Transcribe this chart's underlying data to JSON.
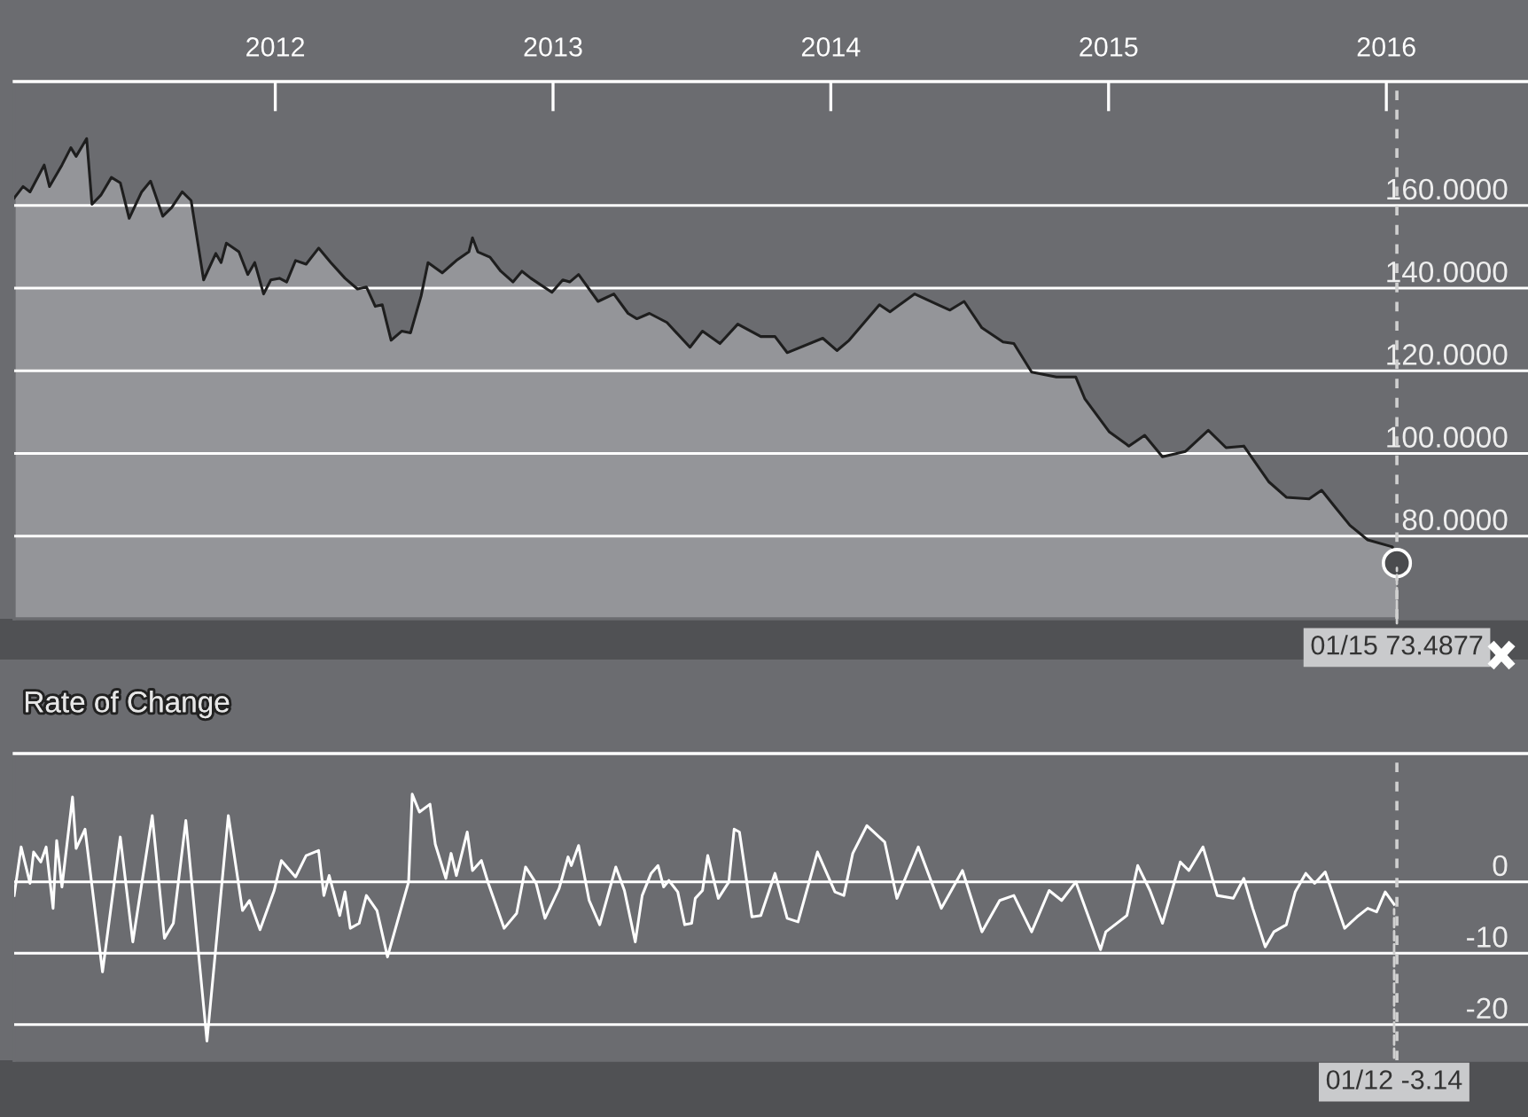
{
  "chart_data": [
    {
      "type": "area",
      "xlim": [
        2011.06,
        2016.51
      ],
      "xticks": [
        2012,
        2013,
        2014,
        2015,
        2016
      ],
      "ylim": [
        60,
        190
      ],
      "yticks": [
        {
          "value": 80,
          "label": "80.0000"
        },
        {
          "value": 100,
          "label": "100.0000"
        },
        {
          "value": 120,
          "label": "120.0000"
        },
        {
          "value": 140,
          "label": "140.0000"
        },
        {
          "value": 160,
          "label": "160.0000"
        }
      ],
      "grid": "y",
      "legend": false,
      "series": [
        {
          "color": "#949599",
          "x": [
            2011.06,
            2011.092,
            2011.117,
            2011.168,
            2011.187,
            2011.232,
            2011.264,
            2011.283,
            2011.321,
            2011.34,
            2011.372,
            2011.41,
            2011.442,
            2011.474,
            2011.519,
            2011.551,
            2011.595,
            2011.627,
            2011.665,
            2011.697,
            2011.742,
            2011.786,
            2011.805,
            2011.824,
            2011.869,
            2011.901,
            2011.926,
            2011.958,
            2011.984,
            2012.015,
            2012.041,
            2012.073,
            2012.111,
            2012.156,
            2012.2,
            2012.251,
            2012.296,
            2012.328,
            2012.36,
            2012.385,
            2012.417,
            2012.455,
            2012.487,
            2012.525,
            2012.55,
            2012.601,
            2012.652,
            2012.697,
            2012.71,
            2012.729,
            2012.773,
            2012.812,
            2012.856,
            2012.888,
            2012.92,
            2012.996,
            2013.035,
            2013.06,
            2013.092,
            2013.162,
            2013.219,
            2013.27,
            2013.302,
            2013.347,
            2013.41,
            2013.493,
            2013.538,
            2013.601,
            2013.665,
            2013.748,
            2013.799,
            2013.843,
            2013.971,
            2014.022,
            2014.066,
            2014.175,
            2014.213,
            2014.302,
            2014.385,
            2014.429,
            2014.48,
            2014.544,
            2014.62,
            2014.659,
            2014.723,
            2014.812,
            2014.882,
            2014.914,
            2015.003,
            2015.073,
            2015.13,
            2015.194,
            2015.277,
            2015.359,
            2015.423,
            2015.487,
            2015.576,
            2015.64,
            2015.722,
            2015.767,
            2015.818,
            2015.869,
            2015.933,
            2016.022,
            2016.038
          ],
          "values": [
            161.8,
            164.6,
            163.3,
            169.8,
            164.6,
            169.8,
            174.0,
            171.9,
            176.2,
            160.3,
            162.5,
            166.8,
            165.5,
            156.9,
            163.3,
            165.9,
            157.4,
            159.5,
            163.3,
            161.2,
            142.0,
            148.4,
            146.2,
            150.9,
            148.8,
            143.3,
            146.2,
            138.6,
            142.0,
            142.4,
            141.5,
            146.7,
            145.8,
            149.7,
            146.2,
            142.4,
            139.8,
            140.3,
            135.6,
            136.0,
            127.4,
            129.6,
            129.2,
            138.1,
            146.2,
            143.7,
            146.7,
            148.8,
            152.2,
            148.8,
            147.5,
            144.1,
            141.5,
            144.1,
            142.4,
            139.0,
            142.0,
            141.5,
            143.3,
            136.8,
            138.6,
            133.9,
            132.6,
            133.9,
            131.7,
            125.7,
            129.6,
            126.6,
            131.3,
            128.3,
            128.3,
            124.4,
            127.9,
            124.9,
            127.4,
            136.0,
            134.3,
            138.6,
            136.0,
            134.7,
            136.8,
            130.4,
            127.0,
            126.6,
            119.7,
            118.5,
            118.5,
            113.3,
            105.2,
            101.8,
            104.4,
            99.2,
            100.5,
            105.6,
            101.4,
            101.8,
            93.2,
            89.4,
            89.0,
            91.1,
            86.8,
            82.6,
            79.1,
            77.4,
            73.4877
          ]
        },
        {
          "type": "scatter",
          "color": "#4a4b4e",
          "x": [
            2016.038
          ],
          "values": [
            73.4877
          ]
        }
      ],
      "ref_lines": [
        {
          "axis": "x",
          "value": 2016.038,
          "color": "#d0d0d0",
          "line_style": "dashed"
        }
      ],
      "annotations": [
        {
          "text": "01/15 73.4877",
          "x": 2016.038,
          "y": 73.4877
        }
      ]
    },
    {
      "type": "line",
      "title": "Rate of Change",
      "xlim": [
        2011.06,
        2016.51
      ],
      "xticks": [
        2012,
        2013,
        2014,
        2015,
        2016
      ],
      "ylim": [
        -25,
        18
      ],
      "yticks": [
        {
          "value": -20,
          "label": "-20"
        },
        {
          "value": -10,
          "label": "-10"
        },
        {
          "value": 0,
          "label": "0"
        }
      ],
      "tick_labels": "y",
      "grid": "y",
      "legend": false,
      "series": [
        {
          "color": "#ffffff",
          "x": [
            2011.06,
            2011.085,
            2011.117,
            2011.13,
            2011.156,
            2011.175,
            2011.2,
            2011.213,
            2011.232,
            2011.27,
            2011.283,
            2011.315,
            2011.378,
            2011.442,
            2011.487,
            2011.557,
            2011.601,
            2011.633,
            2011.678,
            2011.754,
            2011.831,
            2011.882,
            2011.907,
            2011.945,
            2011.996,
            2012.022,
            2012.073,
            2012.111,
            2012.156,
            2012.175,
            2012.194,
            2012.232,
            2012.251,
            2012.27,
            2012.302,
            2012.328,
            2012.366,
            2012.404,
            2012.48,
            2012.493,
            2012.519,
            2012.557,
            2012.576,
            2012.614,
            2012.633,
            2012.652,
            2012.691,
            2012.71,
            2012.742,
            2012.767,
            2012.824,
            2012.869,
            2012.901,
            2012.939,
            2012.971,
            2013.022,
            2013.054,
            2013.066,
            2013.092,
            2013.13,
            2013.168,
            2013.226,
            2013.257,
            2013.296,
            2013.321,
            2013.353,
            2013.378,
            2013.398,
            2013.417,
            2013.449,
            2013.474,
            2013.499,
            2013.512,
            2013.538,
            2013.557,
            2013.595,
            2013.633,
            2013.652,
            2013.671,
            2013.716,
            2013.748,
            2013.799,
            2013.843,
            2013.882,
            2013.952,
            2014.015,
            2014.047,
            2014.079,
            2014.13,
            2014.194,
            2014.238,
            2014.315,
            2014.398,
            2014.474,
            2014.544,
            2014.608,
            2014.659,
            2014.723,
            2014.786,
            2014.831,
            2014.882,
            2014.971,
            2014.99,
            2015.066,
            2015.105,
            2015.149,
            2015.194,
            2015.258,
            2015.289,
            2015.34,
            2015.391,
            2015.449,
            2015.487,
            2015.519,
            2015.564,
            2015.595,
            2015.64,
            2015.672,
            2015.71,
            2015.742,
            2015.78,
            2015.85,
            2015.894,
            2015.933,
            2015.965,
            2015.996,
            2016.028
          ],
          "values": [
            -1.9,
            4.9,
            -0.2,
            4.2,
            2.8,
            4.9,
            -3.7,
            5.8,
            -0.7,
            11.9,
            4.7,
            7.4,
            -12.6,
            6.3,
            -8.4,
            9.3,
            -7.9,
            -5.8,
            8.6,
            -22.3,
            9.3,
            -4.0,
            -2.6,
            -6.7,
            -1.2,
            3.0,
            0.7,
            3.7,
            4.4,
            -1.9,
            0.9,
            -4.7,
            -1.4,
            -6.5,
            -5.8,
            -1.9,
            -4.0,
            -10.5,
            0.0,
            12.3,
            9.8,
            10.9,
            5.3,
            0.5,
            4.0,
            0.9,
            7.0,
            1.6,
            3.0,
            -0.2,
            -6.5,
            -4.4,
            2.1,
            -0.2,
            -5.1,
            -0.9,
            3.5,
            2.3,
            5.1,
            -2.6,
            -6.0,
            2.1,
            -1.2,
            -8.4,
            -1.9,
            1.2,
            2.3,
            -0.7,
            0.2,
            -1.4,
            -6.0,
            -5.8,
            -2.3,
            -1.2,
            3.7,
            -2.3,
            0.0,
            7.4,
            7.0,
            -4.9,
            -4.7,
            1.2,
            -5.1,
            -5.6,
            4.2,
            -1.4,
            -1.9,
            4.0,
            7.9,
            5.6,
            -2.3,
            4.9,
            -3.7,
            1.6,
            -7.0,
            -2.6,
            -1.9,
            -7.0,
            -1.2,
            -2.6,
            0.0,
            -9.5,
            -7.0,
            -4.7,
            2.3,
            -1.2,
            -5.8,
            2.8,
            1.6,
            4.9,
            -1.9,
            -2.3,
            0.5,
            -3.7,
            -9.1,
            -7.0,
            -6.0,
            -1.4,
            1.2,
            -0.2,
            1.4,
            -6.5,
            -4.9,
            -3.7,
            -4.2,
            -1.4,
            -3.14
          ]
        }
      ],
      "ref_lines": [
        {
          "axis": "x",
          "value": 2016.038,
          "color": "#d0d0d0",
          "line_style": "dashed"
        }
      ],
      "annotations": [
        {
          "text": "01/12 -3.14",
          "x": 2016.028,
          "y": -3.14
        }
      ]
    }
  ]
}
